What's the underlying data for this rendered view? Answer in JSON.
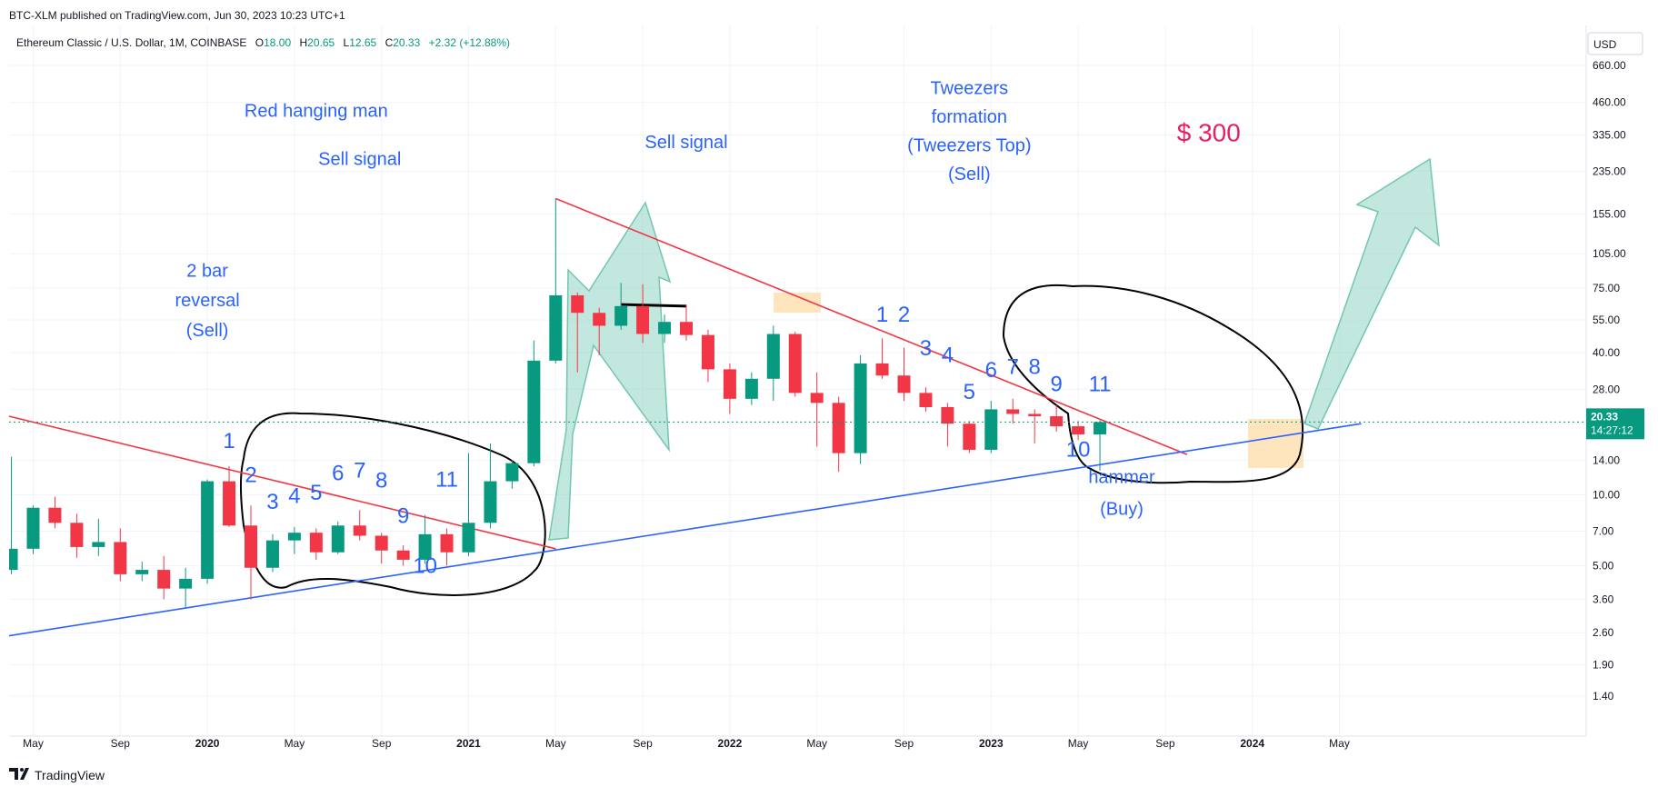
{
  "header": {
    "published": "BTC-XLM published on TradingView.com, Jun 30, 2023 10:23 UTC+1",
    "symbol": "Ethereum Classic / U.S. Dollar, 1M, COINBASE",
    "o_label": "O",
    "o_value": "18.00",
    "h_label": "H",
    "h_value": "20.65",
    "l_label": "L",
    "l_value": "12.65",
    "c_label": "C",
    "c_value": "20.33",
    "change": "+2.32 (+12.88%)"
  },
  "currency": "USD",
  "price_badge": {
    "price": "20.33",
    "countdown": "14:27:12"
  },
  "footer": {
    "logo_text": "TradingView"
  },
  "colors": {
    "up": "#089981",
    "down": "#f23645",
    "annotation": "#2962ff",
    "target": "#e91e63",
    "trend_red": "#f23645",
    "trend_blue": "#2962ff"
  },
  "chart_data": {
    "type": "candlestick",
    "scale": "log",
    "ylim": [
      1.1,
      900
    ],
    "y_ticks": [
      "660.00",
      "460.00",
      "335.00",
      "235.00",
      "155.00",
      "105.00",
      "75.00",
      "55.00",
      "40.00",
      "28.00",
      "14.00",
      "10.00",
      "7.00",
      "5.00",
      "3.60",
      "2.60",
      "1.90",
      "1.40"
    ],
    "x_ticks": [
      {
        "label": "May",
        "month": "2019-05",
        "bold": false
      },
      {
        "label": "Sep",
        "month": "2019-09",
        "bold": false
      },
      {
        "label": "2020",
        "month": "2020-01",
        "bold": true
      },
      {
        "label": "May",
        "month": "2020-05",
        "bold": false
      },
      {
        "label": "Sep",
        "month": "2020-09",
        "bold": false
      },
      {
        "label": "2021",
        "month": "2021-01",
        "bold": true
      },
      {
        "label": "May",
        "month": "2021-05",
        "bold": false
      },
      {
        "label": "Sep",
        "month": "2021-09",
        "bold": false
      },
      {
        "label": "2022",
        "month": "2022-01",
        "bold": true
      },
      {
        "label": "May",
        "month": "2022-05",
        "bold": false
      },
      {
        "label": "Sep",
        "month": "2022-09",
        "bold": false
      },
      {
        "label": "2023",
        "month": "2023-01",
        "bold": true
      },
      {
        "label": "May",
        "month": "2023-05",
        "bold": false
      },
      {
        "label": "Sep",
        "month": "2023-09",
        "bold": false
      },
      {
        "label": "2024",
        "month": "2024-01",
        "bold": true
      },
      {
        "label": "May",
        "month": "2024-05",
        "bold": false
      }
    ],
    "candles": [
      {
        "m": "2019-04",
        "o": 4.8,
        "h": 14.5,
        "l": 4.6,
        "c": 5.9
      },
      {
        "m": "2019-05",
        "o": 5.9,
        "h": 9.0,
        "l": 5.6,
        "c": 8.8
      },
      {
        "m": "2019-06",
        "o": 8.8,
        "h": 9.8,
        "l": 7.2,
        "c": 7.6
      },
      {
        "m": "2019-07",
        "o": 7.6,
        "h": 8.3,
        "l": 5.4,
        "c": 6.0
      },
      {
        "m": "2019-08",
        "o": 6.0,
        "h": 7.9,
        "l": 5.5,
        "c": 6.3
      },
      {
        "m": "2019-09",
        "o": 6.3,
        "h": 7.2,
        "l": 4.3,
        "c": 4.6
      },
      {
        "m": "2019-10",
        "o": 4.6,
        "h": 5.2,
        "l": 4.3,
        "c": 4.8
      },
      {
        "m": "2019-11",
        "o": 4.8,
        "h": 5.5,
        "l": 3.6,
        "c": 4.0
      },
      {
        "m": "2019-12",
        "o": 4.0,
        "h": 4.9,
        "l": 3.3,
        "c": 4.4
      },
      {
        "m": "2020-01",
        "o": 4.4,
        "h": 11.6,
        "l": 4.2,
        "c": 11.4
      },
      {
        "m": "2020-02",
        "o": 11.4,
        "h": 13.2,
        "l": 7.3,
        "c": 7.4
      },
      {
        "m": "2020-03",
        "o": 7.4,
        "h": 9.0,
        "l": 3.6,
        "c": 4.9
      },
      {
        "m": "2020-04",
        "o": 4.9,
        "h": 6.8,
        "l": 4.7,
        "c": 6.4
      },
      {
        "m": "2020-05",
        "o": 6.4,
        "h": 7.3,
        "l": 5.6,
        "c": 6.9
      },
      {
        "m": "2020-06",
        "o": 6.9,
        "h": 7.2,
        "l": 5.3,
        "c": 5.7
      },
      {
        "m": "2020-07",
        "o": 5.7,
        "h": 7.7,
        "l": 5.6,
        "c": 7.4
      },
      {
        "m": "2020-08",
        "o": 7.4,
        "h": 8.6,
        "l": 6.4,
        "c": 6.7
      },
      {
        "m": "2020-09",
        "o": 6.7,
        "h": 6.9,
        "l": 5.1,
        "c": 5.8
      },
      {
        "m": "2020-10",
        "o": 5.8,
        "h": 6.1,
        "l": 5.0,
        "c": 5.3
      },
      {
        "m": "2020-11",
        "o": 5.3,
        "h": 8.2,
        "l": 5.1,
        "c": 6.8
      },
      {
        "m": "2020-12",
        "o": 6.8,
        "h": 7.2,
        "l": 5.0,
        "c": 5.7
      },
      {
        "m": "2021-01",
        "o": 5.7,
        "h": 15.0,
        "l": 5.5,
        "c": 7.6
      },
      {
        "m": "2021-02",
        "o": 7.6,
        "h": 16.5,
        "l": 7.2,
        "c": 11.4
      },
      {
        "m": "2021-03",
        "o": 11.4,
        "h": 14.0,
        "l": 10.6,
        "c": 13.6
      },
      {
        "m": "2021-04",
        "o": 13.6,
        "h": 45.0,
        "l": 13.2,
        "c": 37.0
      },
      {
        "m": "2021-05",
        "o": 37.0,
        "h": 180.0,
        "l": 36.0,
        "c": 70.0
      },
      {
        "m": "2021-06",
        "o": 70.0,
        "h": 72.0,
        "l": 33.0,
        "c": 59.0
      },
      {
        "m": "2021-07",
        "o": 59.0,
        "h": 62.0,
        "l": 39.0,
        "c": 52.0
      },
      {
        "m": "2021-08",
        "o": 52.0,
        "h": 79.0,
        "l": 50.0,
        "c": 63.0
      },
      {
        "m": "2021-09",
        "o": 63.0,
        "h": 78.0,
        "l": 44.0,
        "c": 48.0
      },
      {
        "m": "2021-10",
        "o": 48.0,
        "h": 58.0,
        "l": 44.0,
        "c": 54.0
      },
      {
        "m": "2021-11",
        "o": 54.0,
        "h": 64.0,
        "l": 45.0,
        "c": 47.5
      },
      {
        "m": "2021-12",
        "o": 47.5,
        "h": 50.0,
        "l": 30.0,
        "c": 34.0
      },
      {
        "m": "2022-01",
        "o": 34.0,
        "h": 36.0,
        "l": 22.0,
        "c": 25.5
      },
      {
        "m": "2022-02",
        "o": 25.5,
        "h": 33.0,
        "l": 24.0,
        "c": 31.0
      },
      {
        "m": "2022-03",
        "o": 31.0,
        "h": 52.0,
        "l": 25.0,
        "c": 48.0
      },
      {
        "m": "2022-04",
        "o": 48.0,
        "h": 49.0,
        "l": 26.0,
        "c": 27.0
      },
      {
        "m": "2022-05",
        "o": 27.0,
        "h": 33.0,
        "l": 16.0,
        "c": 24.5
      },
      {
        "m": "2022-06",
        "o": 24.5,
        "h": 26.0,
        "l": 12.5,
        "c": 15.0
      },
      {
        "m": "2022-07",
        "o": 15.0,
        "h": 39.0,
        "l": 13.5,
        "c": 36.0
      },
      {
        "m": "2022-08",
        "o": 36.0,
        "h": 46.0,
        "l": 31.0,
        "c": 32.0
      },
      {
        "m": "2022-09",
        "o": 32.0,
        "h": 42.0,
        "l": 25.0,
        "c": 27.0
      },
      {
        "m": "2022-10",
        "o": 27.0,
        "h": 28.5,
        "l": 22.5,
        "c": 23.5
      },
      {
        "m": "2022-11",
        "o": 23.5,
        "h": 24.5,
        "l": 16.0,
        "c": 20.0
      },
      {
        "m": "2022-12",
        "o": 20.0,
        "h": 20.5,
        "l": 15.0,
        "c": 15.5
      },
      {
        "m": "2023-01",
        "o": 15.5,
        "h": 25.0,
        "l": 15.0,
        "c": 23.0
      },
      {
        "m": "2023-02",
        "o": 23.0,
        "h": 25.5,
        "l": 20.0,
        "c": 22.0
      },
      {
        "m": "2023-03",
        "o": 22.0,
        "h": 23.0,
        "l": 16.5,
        "c": 21.5
      },
      {
        "m": "2023-04",
        "o": 21.5,
        "h": 24.0,
        "l": 18.5,
        "c": 19.5
      },
      {
        "m": "2023-05",
        "o": 19.5,
        "h": 20.5,
        "l": 17.0,
        "c": 18.0
      },
      {
        "m": "2023-06",
        "o": 18.0,
        "h": 20.65,
        "l": 12.65,
        "c": 20.33
      }
    ],
    "trendlines": [
      {
        "name": "upper-resistance-2019",
        "color": "#f23645",
        "p1": {
          "m": "2019-03",
          "v": 22.5
        },
        "p2": {
          "m": "2021-05",
          "v": 5.9
        }
      },
      {
        "name": "upper-resistance-2021",
        "color": "#f23645",
        "p1": {
          "m": "2021-05",
          "v": 180
        },
        "p2": {
          "m": "2023-10",
          "v": 14.8
        }
      },
      {
        "name": "support-line",
        "color": "#2962ff",
        "p1": {
          "m": "2019-03",
          "v": 2.45
        },
        "p2": {
          "m": "2024-06",
          "v": 20.0
        }
      },
      {
        "name": "neckline",
        "color": "#000000",
        "p1": {
          "m": "2021-08",
          "v": 64
        },
        "p2": {
          "m": "2021-11",
          "v": 63
        }
      }
    ],
    "annotations": [
      {
        "key": "red_hanging_man",
        "text": "Red hanging man",
        "m": "2020-06",
        "v": 400,
        "size": 20,
        "color": "#2962ff"
      },
      {
        "key": "sell_signal_1",
        "text": "Sell signal",
        "m": "2020-08",
        "v": 250,
        "size": 20,
        "color": "#2962ff"
      },
      {
        "key": "bar2_line1",
        "text": "2 bar",
        "m": "2020-01",
        "v": 84,
        "size": 20,
        "color": "#2962ff"
      },
      {
        "key": "bar2_line2",
        "text": "reversal",
        "m": "2020-01",
        "v": 63,
        "size": 20,
        "color": "#2962ff"
      },
      {
        "key": "bar2_line3",
        "text": "(Sell)",
        "m": "2020-01",
        "v": 47,
        "size": 20,
        "color": "#2962ff"
      },
      {
        "key": "sell_signal_2",
        "text": "Sell signal",
        "m": "2021-11",
        "v": 295,
        "size": 20,
        "color": "#2962ff"
      },
      {
        "key": "tweezers_line1",
        "text": "Tweezers",
        "m": "2022-12",
        "v": 500,
        "size": 20,
        "color": "#2962ff"
      },
      {
        "key": "tweezers_line2",
        "text": "formation",
        "m": "2022-12",
        "v": 378,
        "size": 20,
        "color": "#2962ff"
      },
      {
        "key": "tweezers_line3",
        "text": "(Tweezers Top)",
        "m": "2022-12",
        "v": 286,
        "size": 20,
        "color": "#2962ff"
      },
      {
        "key": "tweezers_line4",
        "text": "(Sell)",
        "m": "2022-12",
        "v": 216,
        "size": 20,
        "color": "#2962ff"
      },
      {
        "key": "target",
        "text": "$ 300",
        "m": "2023-11",
        "v": 315,
        "size": 28,
        "color": "#e91e63"
      },
      {
        "key": "hammer_line1",
        "text": "hammer",
        "m": "2023-07",
        "v": 11.2,
        "size": 20,
        "color": "#2962ff"
      },
      {
        "key": "hammer_line2",
        "text": "(Buy)",
        "m": "2023-07",
        "v": 8.2,
        "size": 20,
        "color": "#2962ff"
      },
      {
        "key": "n2020_1",
        "text": "1",
        "m": "2020-02",
        "v": 15.8,
        "size": 24,
        "color": "#2962ff"
      },
      {
        "key": "n2020_2",
        "text": "2",
        "m": "2020-03",
        "v": 11.3,
        "size": 24,
        "color": "#2962ff"
      },
      {
        "key": "n2020_3",
        "text": "3",
        "m": "2020-04",
        "v": 8.7,
        "size": 24,
        "color": "#2962ff"
      },
      {
        "key": "n2020_4",
        "text": "4",
        "m": "2020-05",
        "v": 9.2,
        "size": 24,
        "color": "#2962ff"
      },
      {
        "key": "n2020_5",
        "text": "5",
        "m": "2020-06",
        "v": 9.5,
        "size": 24,
        "color": "#2962ff"
      },
      {
        "key": "n2020_6",
        "text": "6",
        "m": "2020-07",
        "v": 11.5,
        "size": 24,
        "color": "#2962ff"
      },
      {
        "key": "n2020_7",
        "text": "7",
        "m": "2020-08",
        "v": 11.8,
        "size": 24,
        "color": "#2962ff"
      },
      {
        "key": "n2020_8",
        "text": "8",
        "m": "2020-09",
        "v": 10.7,
        "size": 24,
        "color": "#2962ff"
      },
      {
        "key": "n2020_9",
        "text": "9",
        "m": "2020-10",
        "v": 7.6,
        "size": 24,
        "color": "#2962ff"
      },
      {
        "key": "n2020_10",
        "text": "10",
        "m": "2020-11",
        "v": 4.65,
        "size": 24,
        "color": "#2962ff"
      },
      {
        "key": "n2020_11",
        "text": "11",
        "m": "2020-12",
        "v": 10.8,
        "size": 24,
        "color": "#2962ff"
      },
      {
        "key": "n2022_1",
        "text": "1",
        "m": "2022-08",
        "v": 54,
        "size": 24,
        "color": "#2962ff"
      },
      {
        "key": "n2022_2",
        "text": "2",
        "m": "2022-09",
        "v": 54,
        "size": 24,
        "color": "#2962ff"
      },
      {
        "key": "n2022_3",
        "text": "3",
        "m": "2022-10",
        "v": 39,
        "size": 24,
        "color": "#2962ff"
      },
      {
        "key": "n2022_4",
        "text": "4",
        "m": "2022-11",
        "v": 36.5,
        "size": 24,
        "color": "#2962ff"
      },
      {
        "key": "n2022_5",
        "text": "5",
        "m": "2022-12",
        "v": 25.5,
        "size": 24,
        "color": "#2962ff"
      },
      {
        "key": "n2022_6",
        "text": "6",
        "m": "2023-01",
        "v": 31.5,
        "size": 24,
        "color": "#2962ff"
      },
      {
        "key": "n2022_7",
        "text": "7",
        "m": "2023-02",
        "v": 32.5,
        "size": 24,
        "color": "#2962ff"
      },
      {
        "key": "n2022_8",
        "text": "8",
        "m": "2023-03",
        "v": 32.5,
        "size": 24,
        "color": "#2962ff"
      },
      {
        "key": "n2022_9",
        "text": "9",
        "m": "2023-04",
        "v": 27.5,
        "size": 24,
        "color": "#2962ff"
      },
      {
        "key": "n2022_10",
        "text": "10",
        "m": "2023-05",
        "v": 14.5,
        "size": 24,
        "color": "#2962ff"
      },
      {
        "key": "n2022_11",
        "text": "11",
        "m": "2023-06",
        "v": 27.5,
        "size": 24,
        "color": "#2962ff"
      }
    ]
  }
}
